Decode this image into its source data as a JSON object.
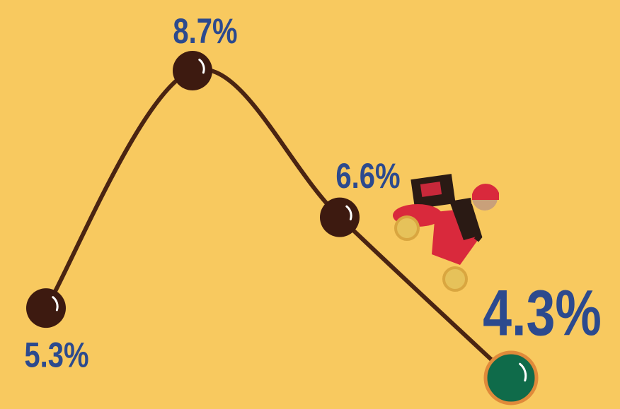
{
  "chart_data": {
    "type": "line",
    "categories": [
      null,
      null,
      null,
      null
    ],
    "values": [
      5.3,
      8.7,
      6.6,
      4.3
    ],
    "value_labels": [
      "5.3%",
      "8.7%",
      "6.6%",
      "4.3%"
    ],
    "color": "#4a2412",
    "highlight_color": "#0f6b4a"
  }
}
